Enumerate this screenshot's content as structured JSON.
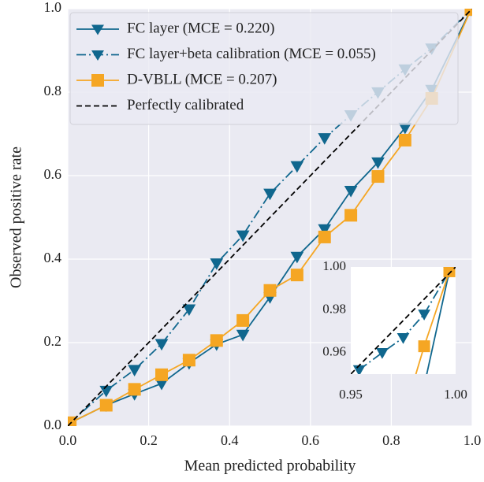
{
  "chart_data": [
    {
      "type": "line",
      "xlabel": "Mean predicted probability",
      "ylabel": "Observed positive rate",
      "xlim": [
        0,
        1
      ],
      "ylim": [
        0,
        1
      ],
      "xticks": [
        {
          "value": 0,
          "label": "0.0"
        },
        {
          "value": 0.2,
          "label": "0.2"
        },
        {
          "value": 0.4,
          "label": "0.4"
        },
        {
          "value": 0.6,
          "label": "0.6"
        },
        {
          "value": 0.8,
          "label": "0.8"
        },
        {
          "value": 1,
          "label": "1.0"
        }
      ],
      "yticks": [
        {
          "value": 0,
          "label": "0.0"
        },
        {
          "value": 0.2,
          "label": "0.2"
        },
        {
          "value": 0.4,
          "label": "0.4"
        },
        {
          "value": 0.6,
          "label": "0.6"
        },
        {
          "value": 0.8,
          "label": "0.8"
        },
        {
          "value": 1,
          "label": "1.0"
        }
      ],
      "grid": true,
      "legend": "upper left",
      "series": [
        {
          "name": "FC layer (MCE = 0.220)",
          "color": "#10678e",
          "marker": "triangle-down",
          "linestyle": "solid",
          "x": [
            0.006,
            0.095,
            0.165,
            0.232,
            0.3,
            0.368,
            0.433,
            0.5,
            0.567,
            0.635,
            0.7,
            0.767,
            0.834,
            0.9,
            0.997
          ],
          "values": [
            0.008,
            0.05,
            0.077,
            0.102,
            0.151,
            0.196,
            0.219,
            0.309,
            0.406,
            0.472,
            0.564,
            0.632,
            0.715,
            0.806,
            0.998
          ]
        },
        {
          "name": "FC layer+beta calibration (MCE = 0.055)",
          "color": "#10678e",
          "marker": "triangle-down",
          "linestyle": "dashdot",
          "x": [
            0.006,
            0.095,
            0.165,
            0.232,
            0.3,
            0.368,
            0.433,
            0.5,
            0.567,
            0.635,
            0.7,
            0.767,
            0.834,
            0.9,
            0.997
          ],
          "values": [
            0.008,
            0.085,
            0.135,
            0.197,
            0.28,
            0.39,
            0.457,
            0.557,
            0.623,
            0.69,
            0.745,
            0.8,
            0.855,
            0.905,
            0.998
          ]
        },
        {
          "name": "D-VBLL (MCE = 0.207)",
          "color": "#f5a623",
          "marker": "square",
          "linestyle": "solid",
          "x": [
            0.006,
            0.095,
            0.165,
            0.232,
            0.3,
            0.368,
            0.433,
            0.5,
            0.567,
            0.635,
            0.7,
            0.767,
            0.834,
            0.9,
            0.997
          ],
          "values": [
            0.008,
            0.05,
            0.088,
            0.123,
            0.158,
            0.205,
            0.253,
            0.325,
            0.362,
            0.453,
            0.505,
            0.598,
            0.685,
            0.785,
            0.998
          ]
        },
        {
          "name": "Perfectly calibrated",
          "color": "#000000",
          "marker": "none",
          "linestyle": "dashed",
          "x": [
            0,
            1
          ],
          "values": [
            0,
            1
          ]
        }
      ]
    },
    {
      "type": "line",
      "xlim": [
        0.95,
        1
      ],
      "ylim": [
        0.95,
        1
      ],
      "xticks": [
        {
          "value": 0.95,
          "label": "0.95"
        },
        {
          "value": 1,
          "label": "1.00"
        }
      ],
      "yticks": [
        {
          "value": 0.96,
          "label": "0.96"
        },
        {
          "value": 0.98,
          "label": "0.98"
        },
        {
          "value": 1,
          "label": "1.00"
        }
      ],
      "grid": false,
      "series": [
        {
          "color": "#10678e",
          "marker": "triangle-down",
          "linestyle": "solid",
          "x": [
            0.984,
            0.997
          ],
          "values": [
            0.94,
            0.998
          ]
        },
        {
          "color": "#10678e",
          "marker": "triangle-down",
          "linestyle": "dashdot",
          "x": [
            0.954,
            0.965,
            0.975,
            0.985,
            0.997
          ],
          "values": [
            0.952,
            0.96,
            0.967,
            0.978,
            0.998
          ]
        },
        {
          "color": "#f5a623",
          "marker": "square",
          "linestyle": "solid",
          "x": [
            0.978,
            0.985,
            0.997
          ],
          "values": [
            0.94,
            0.963,
            0.998
          ]
        },
        {
          "color": "#000000",
          "marker": "none",
          "linestyle": "dashed",
          "x": [
            0.95,
            1
          ],
          "values": [
            0.95,
            1
          ]
        }
      ]
    }
  ]
}
